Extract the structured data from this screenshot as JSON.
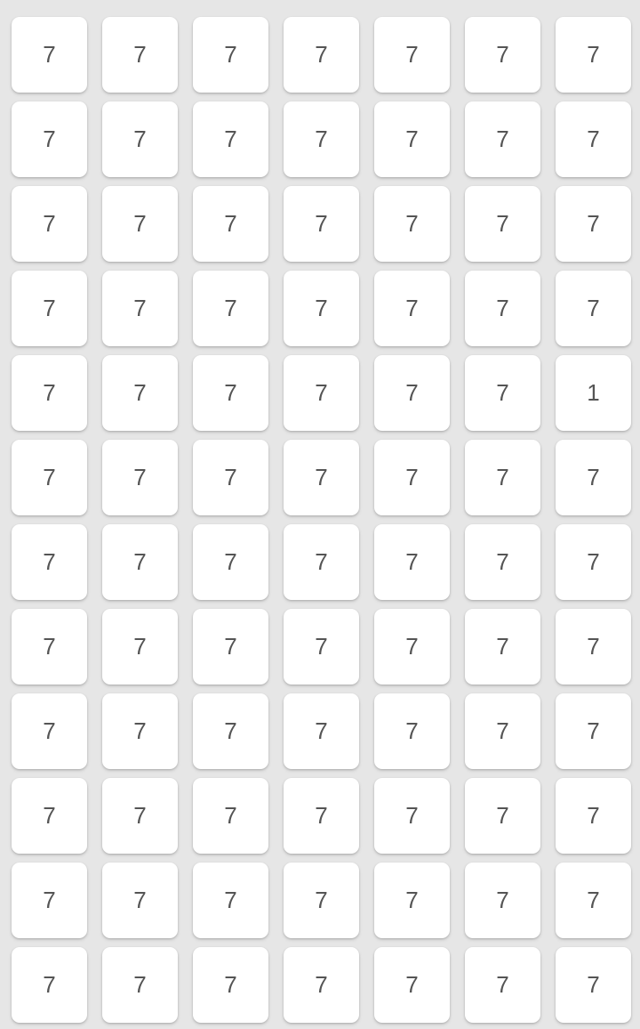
{
  "board": {
    "rows": [
      [
        "7",
        "7",
        "7",
        "7",
        "7",
        "7",
        "7"
      ],
      [
        "7",
        "7",
        "7",
        "7",
        "7",
        "7",
        "7"
      ],
      [
        "7",
        "7",
        "7",
        "7",
        "7",
        "7",
        "7"
      ],
      [
        "7",
        "7",
        "7",
        "7",
        "7",
        "7",
        "7"
      ],
      [
        "7",
        "7",
        "7",
        "7",
        "7",
        "7",
        "1"
      ],
      [
        "7",
        "7",
        "7",
        "7",
        "7",
        "7",
        "7"
      ],
      [
        "7",
        "7",
        "7",
        "7",
        "7",
        "7",
        "7"
      ],
      [
        "7",
        "7",
        "7",
        "7",
        "7",
        "7",
        "7"
      ],
      [
        "7",
        "7",
        "7",
        "7",
        "7",
        "7",
        "7"
      ],
      [
        "7",
        "7",
        "7",
        "7",
        "7",
        "7",
        "7"
      ],
      [
        "7",
        "7",
        "7",
        "7",
        "7",
        "7",
        "7"
      ],
      [
        "7",
        "7",
        "7",
        "7",
        "7",
        "7",
        "7"
      ]
    ]
  },
  "colors": {
    "background": "#e6e6e6",
    "tile": "#ffffff",
    "text": "#555555"
  }
}
